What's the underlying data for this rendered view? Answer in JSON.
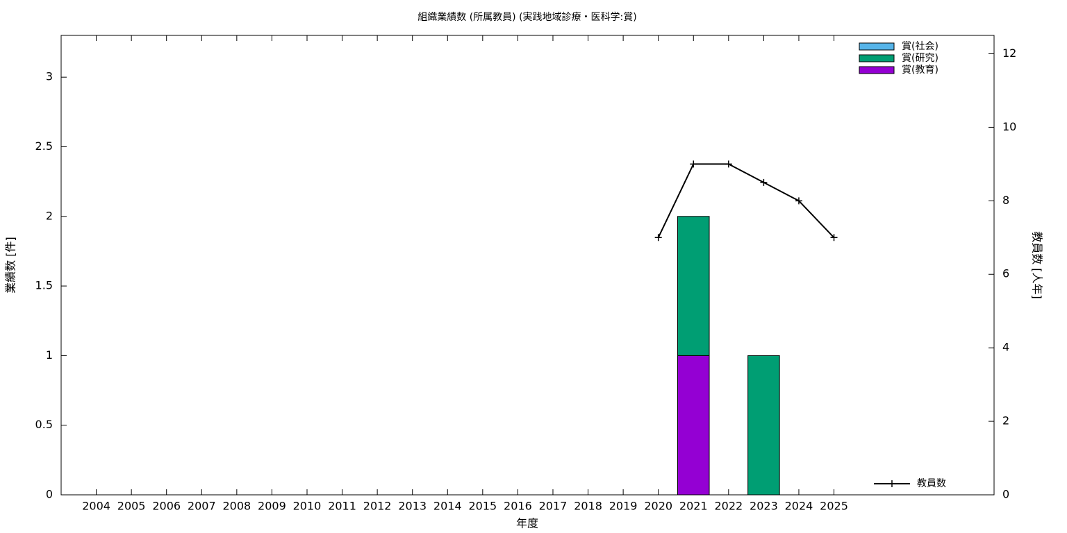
{
  "chart_data": {
    "type": "bar",
    "title": "組織業績数 (所属教員) (実践地域診療・医科学:賞)",
    "xlabel": "年度",
    "ylabel": "業績数 [件]",
    "y2label": "教員数 [人年]",
    "categories": [
      "2004",
      "2005",
      "2006",
      "2007",
      "2008",
      "2009",
      "2010",
      "2011",
      "2012",
      "2013",
      "2014",
      "2015",
      "2016",
      "2017",
      "2018",
      "2019",
      "2020",
      "2021",
      "2022",
      "2023",
      "2024",
      "2025"
    ],
    "stacked": true,
    "series": [
      {
        "name": "賞(社会)",
        "color": "#56b4e9",
        "values": [
          0,
          0,
          0,
          0,
          0,
          0,
          0,
          0,
          0,
          0,
          0,
          0,
          0,
          0,
          0,
          0,
          0,
          0,
          0,
          0,
          0,
          0
        ]
      },
      {
        "name": "賞(研究)",
        "color": "#009e73",
        "values": [
          0,
          0,
          0,
          0,
          0,
          0,
          0,
          0,
          0,
          0,
          0,
          0,
          0,
          0,
          0,
          0,
          0,
          1,
          0,
          1,
          0,
          0
        ]
      },
      {
        "name": "賞(教育)",
        "color": "#9400d3",
        "values": [
          0,
          0,
          0,
          0,
          0,
          0,
          0,
          0,
          0,
          0,
          0,
          0,
          0,
          0,
          0,
          0,
          0,
          1,
          0,
          0,
          0,
          0
        ]
      },
      {
        "name": "教員数",
        "type": "line",
        "axis": "y2",
        "color": "#000000",
        "values": [
          null,
          null,
          null,
          null,
          null,
          null,
          null,
          null,
          null,
          null,
          null,
          null,
          null,
          null,
          null,
          null,
          7,
          9,
          9,
          8.5,
          8,
          7
        ]
      }
    ],
    "ylim": [
      0,
      3.3
    ],
    "yticks": [
      0,
      0.5,
      1,
      1.5,
      2,
      2.5,
      3
    ],
    "y2lim": [
      0,
      12.5
    ],
    "y2ticks": [
      0,
      2,
      4,
      6,
      8,
      10,
      12
    ],
    "grid": false,
    "legend": "top-right"
  }
}
